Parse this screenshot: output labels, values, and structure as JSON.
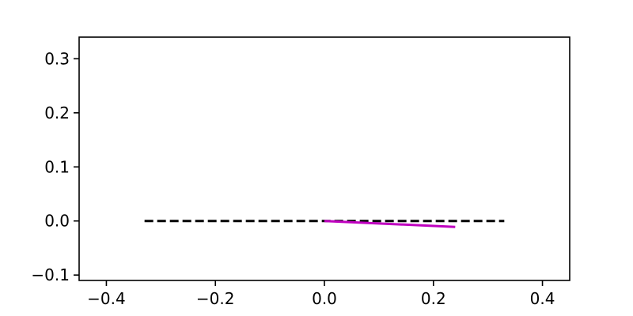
{
  "chart_data": {
    "type": "line",
    "title": "",
    "xlabel": "",
    "ylabel": "",
    "xlim": [
      -0.45,
      0.45
    ],
    "ylim": [
      -0.11,
      0.34
    ],
    "grid": false,
    "legend": "none",
    "x_ticks": [
      {
        "value": -0.4,
        "label": "−0.4"
      },
      {
        "value": -0.2,
        "label": "−0.2"
      },
      {
        "value": 0.0,
        "label": "0.0"
      },
      {
        "value": 0.2,
        "label": "0.2"
      },
      {
        "value": 0.4,
        "label": "0.4"
      }
    ],
    "y_ticks": [
      {
        "value": -0.1,
        "label": "−0.1"
      },
      {
        "value": 0.0,
        "label": "0.0"
      },
      {
        "value": 0.1,
        "label": "0.1"
      },
      {
        "value": 0.2,
        "label": "0.2"
      },
      {
        "value": 0.3,
        "label": "0.3"
      }
    ],
    "series": [
      {
        "x": [
          -0.33,
          0.33
        ],
        "y": [
          0.0,
          0.0
        ],
        "color": "#000000",
        "style": "dashed"
      },
      {
        "x": [
          0.0,
          0.24
        ],
        "y": [
          0.0,
          -0.011
        ],
        "color": "#bf00bf",
        "style": "solid"
      }
    ]
  }
}
